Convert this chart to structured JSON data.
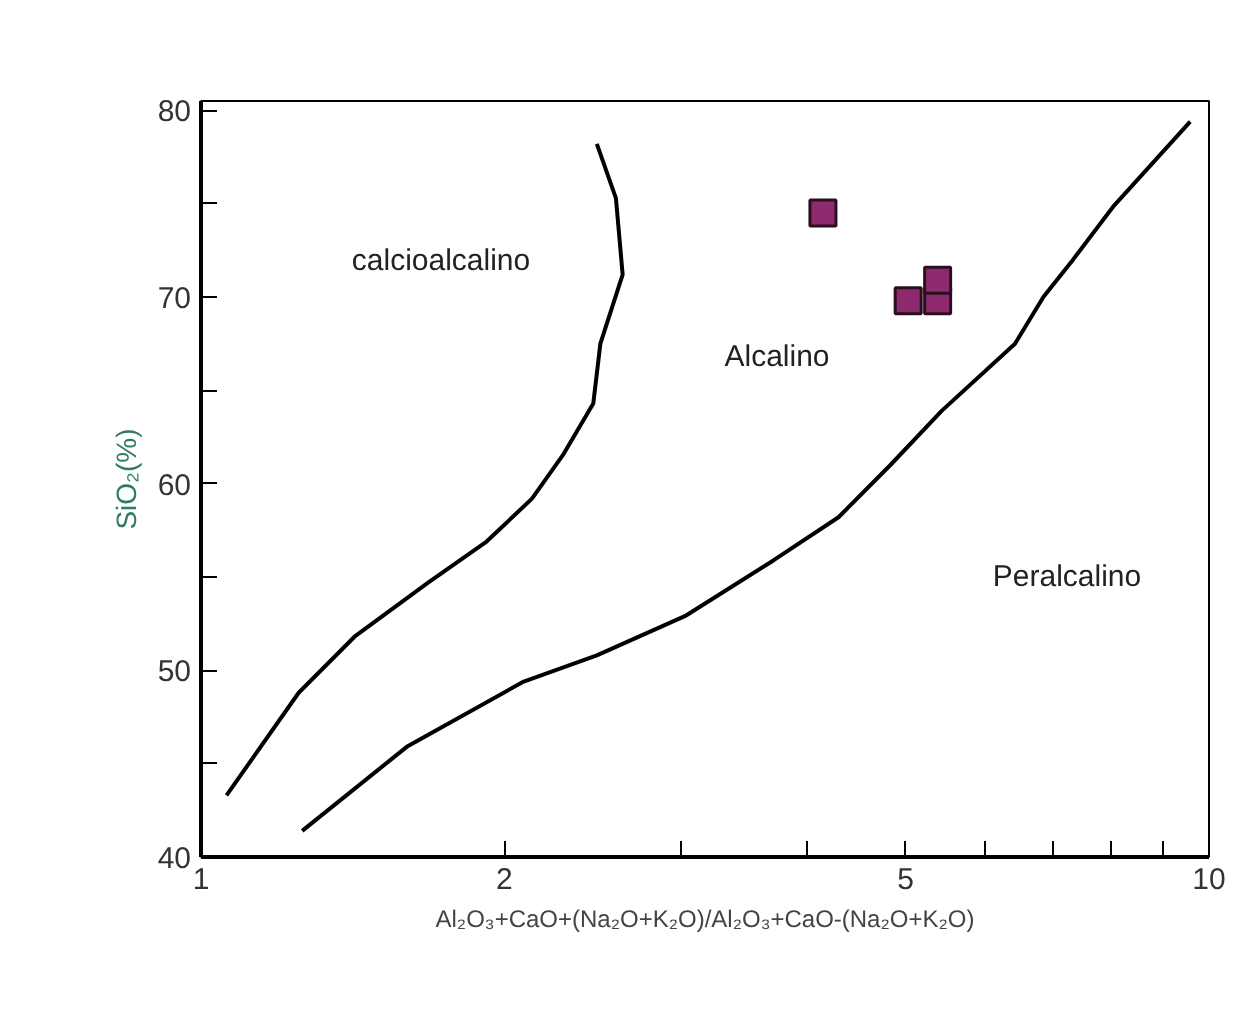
{
  "chart_data": {
    "type": "scatter",
    "xlabel": "Al₂O₃+CaO+(Na₂O+K₂O)/Al₂O₃+CaO-(Na₂O+K₂O)",
    "ylabel": "SiO₂(%)",
    "log": "x",
    "xlim": [
      1,
      10
    ],
    "ylim": [
      40,
      80.5
    ],
    "xticks": [
      1,
      2,
      {
        "value": 3,
        "label": null
      },
      {
        "value": 4,
        "label": null
      },
      5,
      {
        "value": 6,
        "label": null
      },
      {
        "value": 7,
        "label": null
      },
      {
        "value": 8,
        "label": null
      },
      {
        "value": 9,
        "label": null
      },
      10
    ],
    "yticks": [
      40,
      {
        "value": 45,
        "label": null
      },
      50,
      {
        "value": 55,
        "label": null
      },
      60,
      {
        "value": 65,
        "label": null
      },
      70,
      {
        "value": 75,
        "label": null
      },
      80
    ],
    "grid": false,
    "series": [
      {
        "type": "line",
        "color": "#000000",
        "line_style": "solid",
        "x": [
          1.06,
          1.25,
          1.42,
          1.68,
          1.92,
          2.13,
          2.29,
          2.45,
          2.49,
          2.62,
          2.58,
          2.47
        ],
        "values": [
          43.3,
          48.8,
          51.8,
          54.7,
          56.9,
          59.2,
          61.6,
          64.3,
          67.5,
          71.2,
          75.3,
          78.2
        ]
      },
      {
        "type": "line",
        "color": "#000000",
        "line_style": "solid",
        "x": [
          1.26,
          1.6,
          2.09,
          2.47,
          3.02,
          3.7,
          4.29,
          4.83,
          5.43,
          6.42,
          6.85,
          7.33,
          8.05,
          9.58
        ],
        "values": [
          41.4,
          45.9,
          49.4,
          50.8,
          52.9,
          55.9,
          58.2,
          61.0,
          63.9,
          67.5,
          70.0,
          72.0,
          74.9,
          79.4
        ]
      },
      {
        "color": "#8e2a6e",
        "marker": "square",
        "x": [
          4.14,
          5.03,
          5.38,
          5.38
        ],
        "values": [
          74.5,
          69.8,
          69.8,
          70.9
        ]
      }
    ],
    "annotations": [
      "calcioalcalino",
      "Alcalino",
      "Peralcalino"
    ]
  }
}
